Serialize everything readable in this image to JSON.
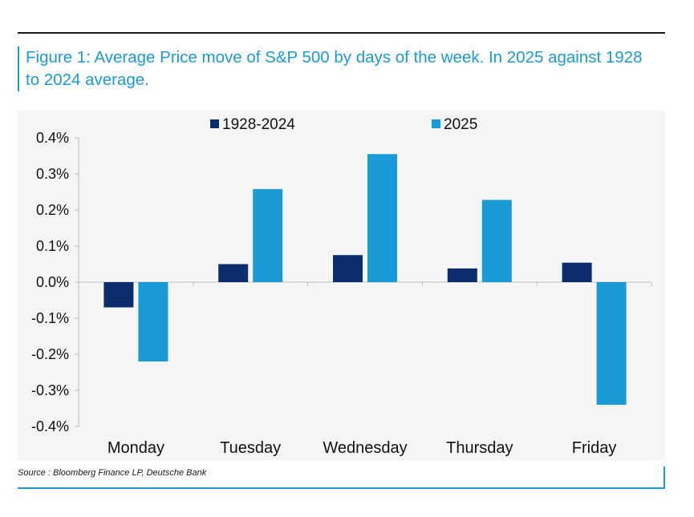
{
  "title": "Figure 1: Average Price move of S&P 500 by days of the week. In 2025 against 1928 to 2024 average.",
  "source": "Source : Bloomberg Finance LP, Deutsche Bank",
  "colors": {
    "series1": "#0b2d6e",
    "series2": "#1a9ad6",
    "title": "#1a9ad6",
    "background": "#f5f5f5"
  },
  "chart_data": {
    "type": "bar",
    "categories": [
      "Monday",
      "Tuesday",
      "Wednesday",
      "Thursday",
      "Friday"
    ],
    "series": [
      {
        "name": "1928-2024",
        "values": [
          -0.07,
          0.05,
          0.075,
          0.038,
          0.054
        ]
      },
      {
        "name": "2025",
        "values": [
          -0.22,
          0.258,
          0.355,
          0.228,
          -0.34
        ]
      }
    ],
    "ylim": [
      -0.4,
      0.4
    ],
    "yticks": [
      "0.4%",
      "0.3%",
      "0.2%",
      "0.1%",
      "0.0%",
      "-0.1%",
      "-0.2%",
      "-0.3%",
      "-0.4%"
    ],
    "ytick_values": [
      0.4,
      0.3,
      0.2,
      0.1,
      0.0,
      -0.1,
      -0.2,
      -0.3,
      -0.4
    ],
    "legend": "top",
    "grid": false,
    "xlabel": "",
    "ylabel": ""
  }
}
